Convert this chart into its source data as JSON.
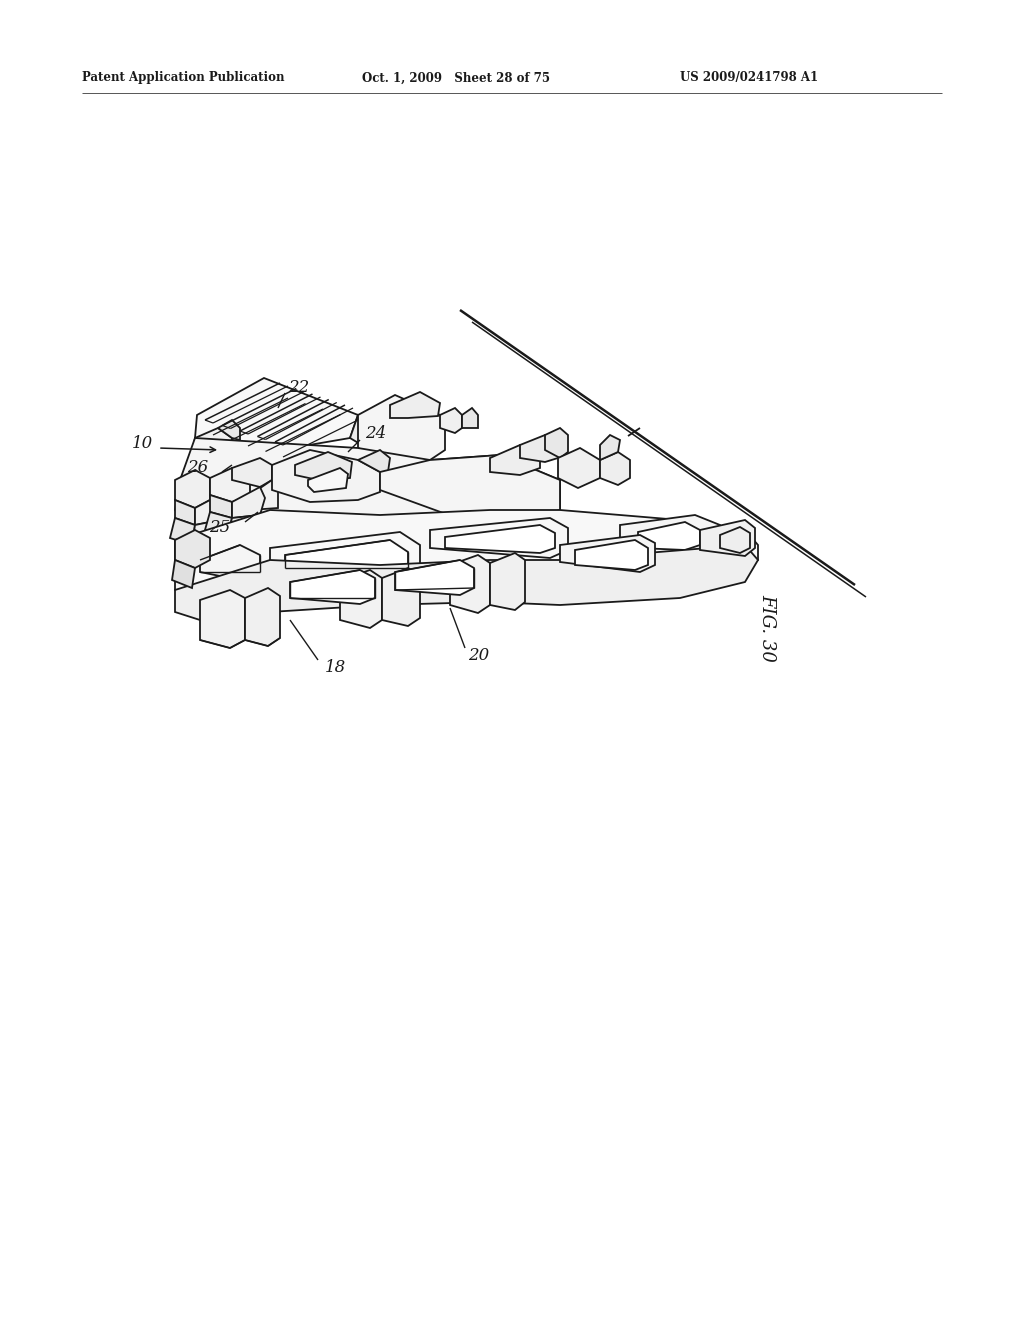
{
  "background_color": "#ffffff",
  "header_left": "Patent Application Publication",
  "header_mid": "Oct. 1, 2009   Sheet 28 of 75",
  "header_right": "US 2009/0241798 A1",
  "fig_label": "FIG. 30",
  "line_color": "#1a1a1a",
  "text_color": "#1a1a1a",
  "lw": 1.3,
  "fig_w": 10.24,
  "fig_h": 13.2,
  "dpi": 100
}
